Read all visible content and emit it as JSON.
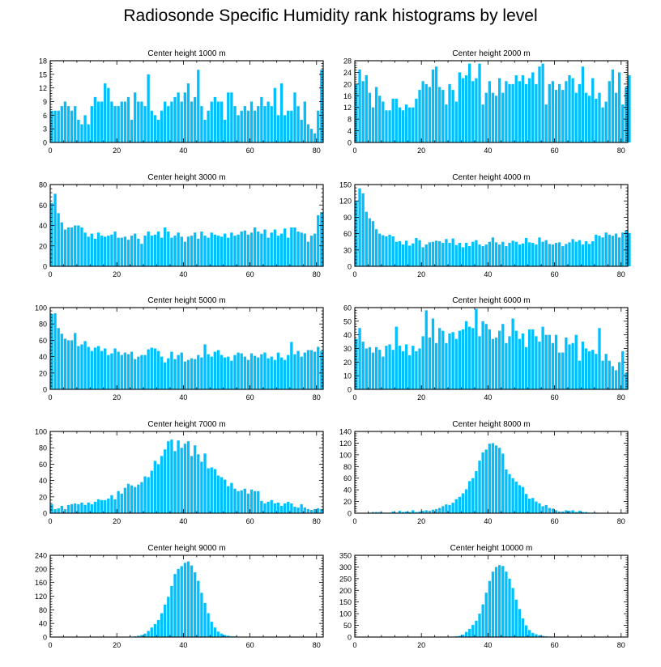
{
  "title": "Radiosonde Specific Humidity rank histograms by level",
  "bar_color": "#00BFFF",
  "chart_data": [
    {
      "type": "bar",
      "title": "Center height 1000 m",
      "xlim": [
        0,
        82
      ],
      "ylim": [
        0,
        18
      ],
      "yticks": [
        0,
        3,
        6,
        9,
        12,
        15,
        18
      ],
      "xticks": [
        0,
        20,
        40,
        60,
        80
      ],
      "values": [
        7,
        7,
        7,
        8,
        9,
        8,
        7,
        8,
        5,
        4,
        6,
        4,
        8,
        10,
        9,
        9,
        13,
        12,
        9,
        8,
        8,
        9,
        9,
        10,
        5,
        11,
        9,
        9,
        8,
        15,
        7,
        6,
        5,
        7,
        9,
        8,
        9,
        10,
        11,
        9,
        11,
        13,
        9,
        10,
        16,
        8,
        5,
        7,
        9,
        10,
        9,
        9,
        5,
        11,
        11,
        8,
        6,
        7,
        8,
        7,
        9,
        7,
        8,
        10,
        8,
        9,
        8,
        12,
        6,
        13,
        6,
        7,
        7,
        11,
        8,
        5,
        9,
        4,
        3,
        2,
        7,
        16
      ]
    },
    {
      "type": "bar",
      "title": "Center height 2000 m",
      "xlim": [
        0,
        82
      ],
      "ylim": [
        0,
        28
      ],
      "yticks": [
        0,
        4,
        8,
        12,
        16,
        20,
        24,
        28
      ],
      "xticks": [
        0,
        20,
        40,
        60,
        80
      ],
      "values": [
        20,
        25,
        21,
        23,
        17,
        12,
        19,
        16,
        14,
        11,
        11,
        15,
        15,
        12,
        11,
        13,
        12,
        12,
        15,
        18,
        21,
        20,
        19,
        25,
        26,
        19,
        18,
        13,
        20,
        18,
        14,
        24,
        22,
        23,
        27,
        21,
        22,
        27,
        13,
        17,
        21,
        17,
        16,
        22,
        17,
        21,
        20,
        20,
        23,
        21,
        23,
        20,
        22,
        24,
        20,
        26,
        27,
        13,
        20,
        21,
        18,
        20,
        18,
        21,
        23,
        22,
        17,
        20,
        26,
        17,
        16,
        22,
        15,
        17,
        12,
        14,
        21,
        25,
        17,
        24,
        13,
        19,
        23
      ]
    },
    {
      "type": "bar",
      "title": "Center height 3000 m",
      "xlim": [
        0,
        82
      ],
      "ylim": [
        0,
        80
      ],
      "yticks": [
        0,
        20,
        40,
        60,
        80
      ],
      "xticks": [
        0,
        20,
        40,
        60,
        80
      ],
      "values": [
        62,
        71,
        52,
        43,
        36,
        38,
        38,
        40,
        40,
        38,
        33,
        29,
        32,
        27,
        33,
        30,
        29,
        30,
        31,
        34,
        28,
        28,
        29,
        26,
        30,
        32,
        27,
        22,
        30,
        34,
        30,
        31,
        34,
        28,
        38,
        34,
        28,
        30,
        33,
        29,
        24,
        29,
        30,
        33,
        27,
        34,
        30,
        28,
        33,
        31,
        30,
        29,
        32,
        28,
        33,
        30,
        31,
        34,
        35,
        31,
        33,
        38,
        34,
        32,
        36,
        28,
        33,
        36,
        30,
        32,
        37,
        28,
        38,
        38,
        34,
        33,
        32,
        24,
        30,
        32,
        50,
        53
      ]
    },
    {
      "type": "bar",
      "title": "Center height 4000 m",
      "xlim": [
        0,
        82
      ],
      "ylim": [
        0,
        150
      ],
      "yticks": [
        0,
        30,
        60,
        90,
        120,
        150
      ],
      "xticks": [
        0,
        20,
        40,
        60,
        80
      ],
      "values": [
        120,
        143,
        134,
        100,
        88,
        83,
        68,
        60,
        57,
        55,
        58,
        55,
        45,
        46,
        40,
        47,
        38,
        42,
        52,
        48,
        35,
        40,
        44,
        45,
        47,
        46,
        43,
        50,
        43,
        51,
        39,
        43,
        35,
        43,
        37,
        45,
        48,
        40,
        37,
        40,
        45,
        53,
        44,
        40,
        45,
        37,
        43,
        47,
        45,
        40,
        42,
        52,
        44,
        43,
        40,
        53,
        45,
        48,
        41,
        40,
        43,
        44,
        37,
        41,
        44,
        50,
        45,
        48,
        40,
        46,
        41,
        46,
        58,
        56,
        53,
        62,
        58,
        56,
        60,
        53,
        62,
        66,
        61
      ]
    },
    {
      "type": "bar",
      "title": "Center height 5000 m",
      "xlim": [
        0,
        82
      ],
      "ylim": [
        0,
        100
      ],
      "yticks": [
        0,
        20,
        40,
        60,
        80,
        100
      ],
      "xticks": [
        0,
        20,
        40,
        60,
        80
      ],
      "values": [
        92,
        93,
        75,
        68,
        62,
        60,
        60,
        69,
        53,
        55,
        59,
        52,
        47,
        51,
        53,
        47,
        50,
        42,
        44,
        50,
        46,
        42,
        45,
        43,
        46,
        37,
        40,
        42,
        42,
        49,
        51,
        50,
        47,
        40,
        33,
        38,
        46,
        37,
        42,
        45,
        34,
        36,
        38,
        37,
        42,
        39,
        55,
        43,
        40,
        46,
        48,
        42,
        39,
        40,
        35,
        42,
        45,
        44,
        40,
        36,
        44,
        41,
        39,
        43,
        45,
        38,
        40,
        36,
        45,
        39,
        36,
        42,
        58,
        43,
        47,
        40,
        45,
        48,
        48,
        46,
        52,
        47
      ]
    },
    {
      "type": "bar",
      "title": "Center height 6000 m",
      "xlim": [
        0,
        82
      ],
      "ylim": [
        0,
        60
      ],
      "yticks": [
        0,
        10,
        20,
        30,
        40,
        50,
        60
      ],
      "xticks": [
        0,
        20,
        40,
        60,
        80
      ],
      "values": [
        37,
        45,
        35,
        30,
        31,
        27,
        31,
        29,
        24,
        32,
        33,
        29,
        46,
        32,
        28,
        33,
        25,
        32,
        28,
        30,
        39,
        58,
        38,
        52,
        34,
        45,
        43,
        34,
        41,
        42,
        37,
        43,
        44,
        50,
        46,
        45,
        59,
        39,
        50,
        48,
        44,
        37,
        38,
        43,
        48,
        34,
        39,
        52,
        43,
        37,
        41,
        31,
        44,
        44,
        39,
        35,
        46,
        40,
        40,
        34,
        40,
        27,
        27,
        38,
        33,
        34,
        40,
        21,
        35,
        30,
        28,
        29,
        26,
        45,
        21,
        26,
        21,
        17,
        14,
        20,
        28,
        12
      ]
    },
    {
      "type": "bar",
      "title": "Center height 7000 m",
      "xlim": [
        0,
        82
      ],
      "ylim": [
        0,
        100
      ],
      "yticks": [
        0,
        20,
        40,
        60,
        80,
        100
      ],
      "xticks": [
        0,
        20,
        40,
        60,
        80
      ],
      "values": [
        11,
        5,
        6,
        9,
        5,
        10,
        11,
        12,
        11,
        13,
        10,
        13,
        11,
        14,
        17,
        16,
        16,
        18,
        22,
        17,
        27,
        24,
        31,
        36,
        34,
        32,
        35,
        38,
        45,
        44,
        52,
        64,
        60,
        70,
        78,
        88,
        90,
        76,
        89,
        80,
        85,
        88,
        70,
        83,
        72,
        63,
        73,
        55,
        56,
        54,
        46,
        44,
        41,
        33,
        37,
        30,
        27,
        28,
        30,
        24,
        29,
        27,
        27,
        15,
        12,
        14,
        16,
        12,
        13,
        9,
        12,
        14,
        12,
        8,
        7,
        11,
        7,
        5,
        4,
        5,
        6,
        5
      ]
    },
    {
      "type": "bar",
      "title": "Center height 8000 m",
      "xlim": [
        0,
        82
      ],
      "ylim": [
        0,
        140
      ],
      "yticks": [
        0,
        20,
        40,
        60,
        80,
        100,
        120,
        140
      ],
      "xticks": [
        0,
        20,
        40,
        60,
        80
      ],
      "values": [
        0,
        0,
        0,
        0,
        1,
        2,
        2,
        2,
        1,
        1,
        1,
        3,
        1,
        4,
        2,
        3,
        2,
        5,
        2,
        3,
        4,
        5,
        4,
        6,
        7,
        9,
        12,
        15,
        14,
        18,
        24,
        28,
        34,
        41,
        55,
        60,
        72,
        90,
        104,
        109,
        119,
        120,
        116,
        112,
        102,
        75,
        67,
        60,
        54,
        48,
        45,
        33,
        25,
        26,
        20,
        17,
        12,
        14,
        9,
        8,
        5,
        3,
        3,
        5,
        4,
        5,
        2,
        4,
        2,
        2,
        1,
        1,
        1,
        0,
        0,
        0,
        0,
        0,
        0,
        0,
        0,
        0
      ]
    },
    {
      "type": "bar",
      "title": "Center height 9000 m",
      "xlim": [
        0,
        82
      ],
      "ylim": [
        0,
        240
      ],
      "yticks": [
        0,
        40,
        80,
        120,
        160,
        200,
        240
      ],
      "xticks": [
        0,
        20,
        40,
        60,
        80
      ],
      "values": [
        0,
        0,
        0,
        0,
        0,
        0,
        0,
        0,
        0,
        0,
        0,
        0,
        0,
        0,
        0,
        0,
        0,
        0,
        0,
        0,
        0,
        0,
        1,
        1,
        1,
        2,
        4,
        6,
        10,
        18,
        28,
        38,
        50,
        70,
        95,
        118,
        150,
        185,
        200,
        208,
        218,
        222,
        210,
        190,
        165,
        130,
        100,
        70,
        45,
        28,
        16,
        10,
        6,
        4,
        2,
        2,
        1,
        1,
        1,
        0,
        0,
        0,
        0,
        0,
        0,
        0,
        0,
        0,
        0,
        0,
        0,
        0,
        0,
        0,
        0,
        0,
        0,
        0,
        0,
        0,
        0,
        0
      ]
    },
    {
      "type": "bar",
      "title": "Center height 10000 m",
      "xlim": [
        0,
        82
      ],
      "ylim": [
        0,
        350
      ],
      "yticks": [
        0,
        50,
        100,
        150,
        200,
        250,
        300,
        350
      ],
      "xticks": [
        0,
        20,
        40,
        60,
        80
      ],
      "values": [
        0,
        0,
        0,
        0,
        0,
        0,
        0,
        0,
        0,
        0,
        0,
        0,
        0,
        0,
        0,
        0,
        0,
        0,
        0,
        0,
        0,
        0,
        0,
        0,
        0,
        0,
        0,
        0,
        1,
        2,
        3,
        5,
        10,
        22,
        35,
        52,
        70,
        100,
        140,
        190,
        240,
        280,
        300,
        308,
        304,
        280,
        250,
        210,
        160,
        120,
        80,
        50,
        30,
        18,
        12,
        8,
        5,
        3,
        2,
        1,
        1,
        0,
        0,
        0,
        0,
        0,
        0,
        0,
        0,
        0,
        0,
        0,
        0,
        0,
        0,
        0,
        0,
        0,
        0,
        0,
        0,
        0
      ]
    }
  ]
}
